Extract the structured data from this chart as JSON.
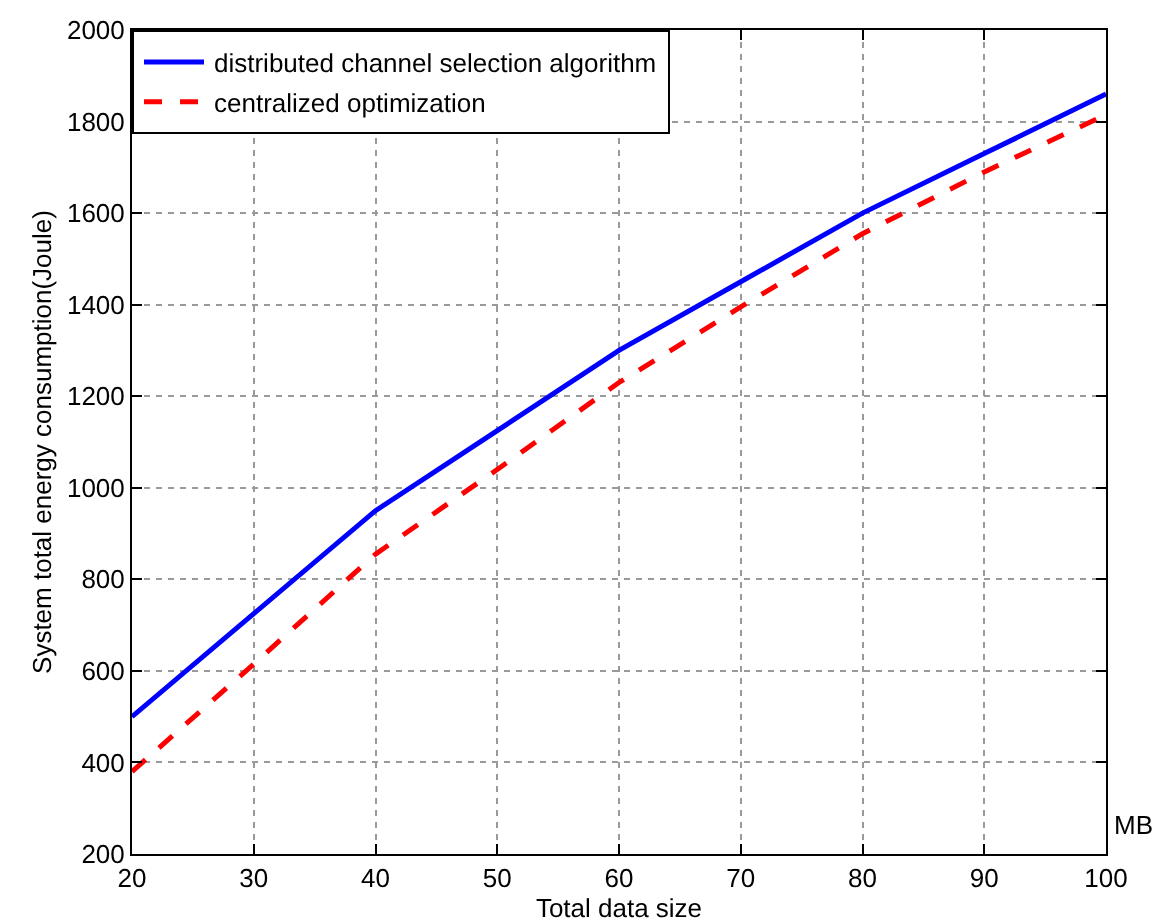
{
  "chart_data": {
    "type": "line",
    "xlabel": "Total data size",
    "ylabel": "System total energy consumption(Joule)",
    "annotations": [
      "MB"
    ],
    "x": [
      20,
      30,
      40,
      50,
      60,
      70,
      80,
      90,
      100
    ],
    "series": [
      {
        "name": "distributed channel selection algorithm",
        "color": "#0000ff",
        "line_style": "solid",
        "values": [
          500,
          725,
          950,
          1125,
          1300,
          1450,
          1600,
          1730,
          1860
        ]
      },
      {
        "name": "centralized optimization",
        "color": "#ff0000",
        "line_style": "dashed",
        "values": [
          380,
          615,
          855,
          1040,
          1230,
          1395,
          1555,
          1690,
          1815
        ]
      }
    ],
    "xlim": [
      20,
      100
    ],
    "xticks": [
      20,
      30,
      40,
      50,
      60,
      70,
      80,
      90,
      100
    ],
    "ylim": [
      200,
      2000
    ],
    "yticks": [
      200,
      400,
      600,
      800,
      1000,
      1200,
      1400,
      1600,
      1800,
      2000
    ],
    "grid": true,
    "legend": "top left",
    "marker": "none"
  }
}
